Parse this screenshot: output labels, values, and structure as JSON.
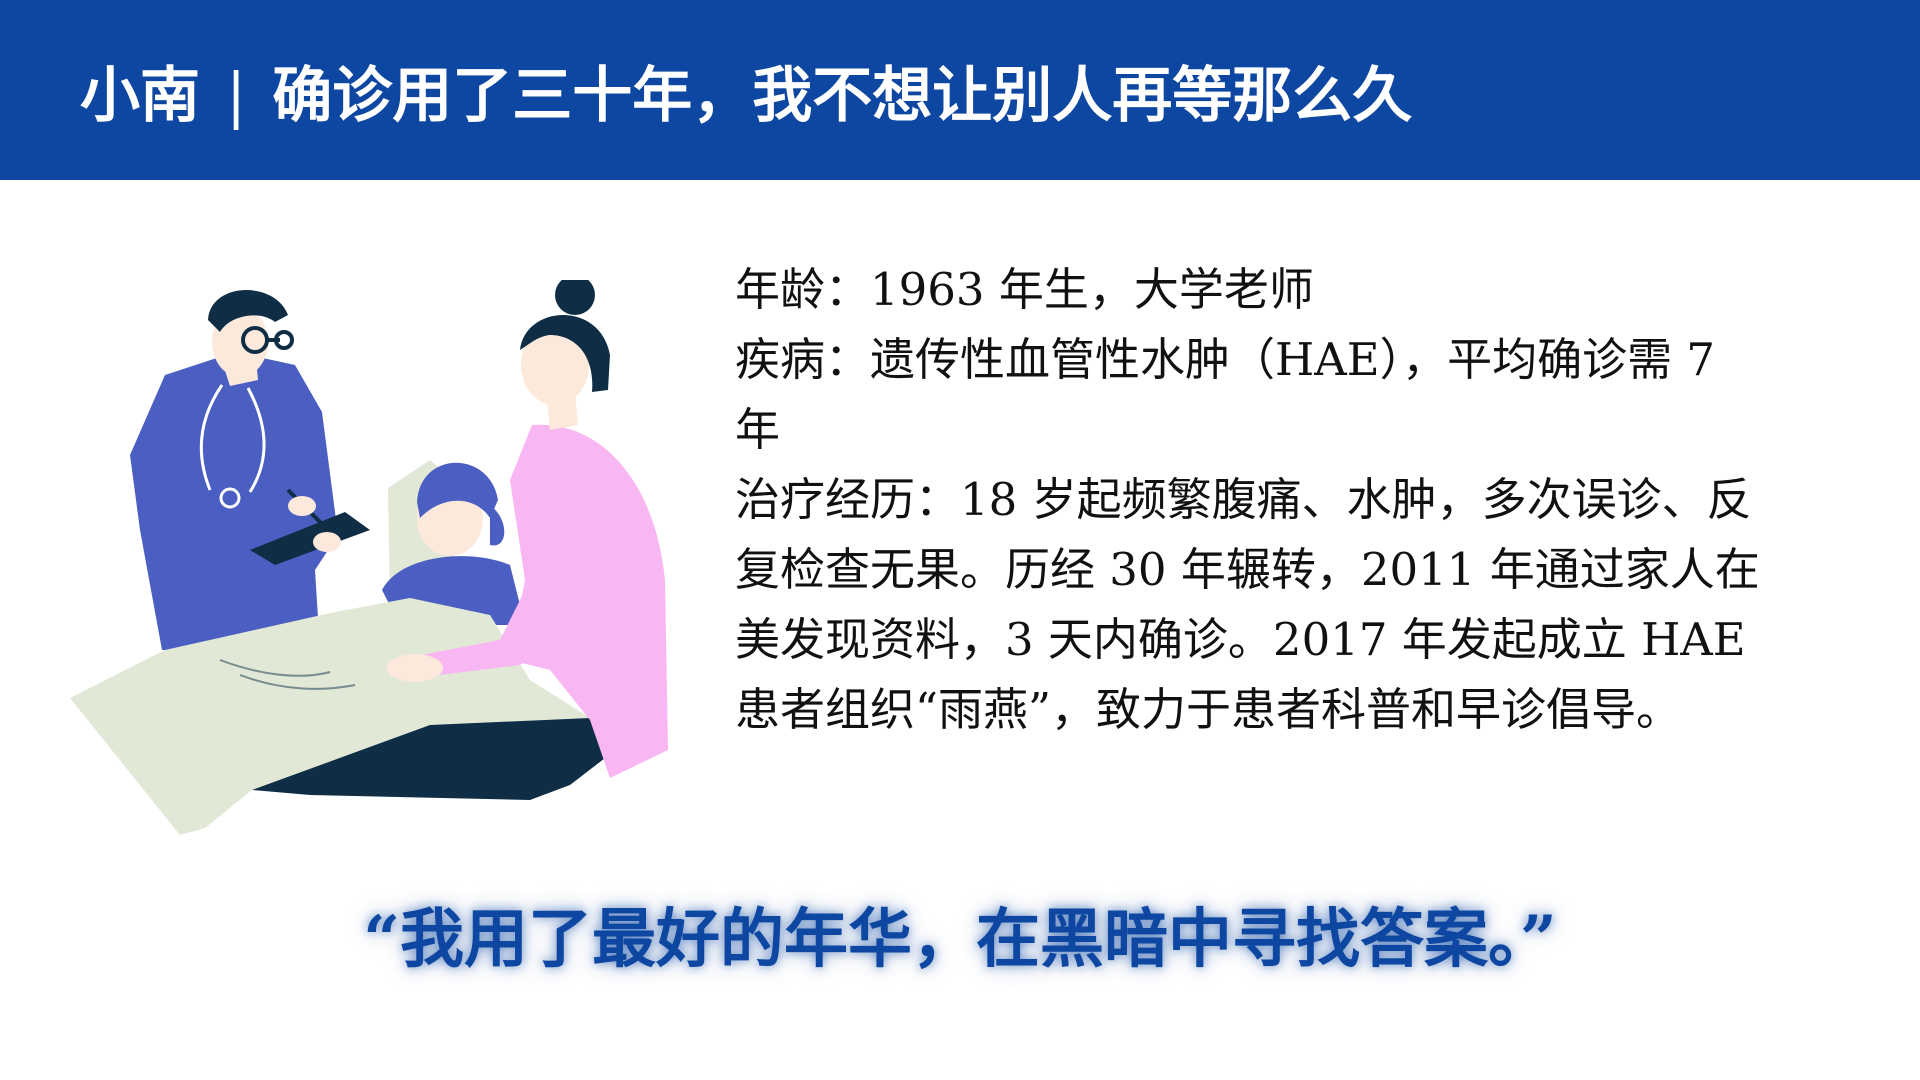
{
  "header": {
    "name": "小南",
    "separator": "|",
    "title": "确诊用了三十年，我不想让别人再等那么久"
  },
  "info": {
    "age": "年龄：1963 年生，大学老师",
    "disease": "疾病：遗传性血管性水肿（HAE），平均确诊需 7 年",
    "treatment": "治疗经历：18 岁起频繁腹痛、水肿，多次误诊、反复检查无果。历经 30 年辗转，2011 年通过家人在美发现资料，3 天内确诊。2017 年发起成立 HAE 患者组织“雨燕”，致力于患者科普和早诊倡导。"
  },
  "quote": "“我用了最好的年华，在黑暗中寻找答案。”",
  "colors": {
    "header_bg": "#0D47A1",
    "quote": "#0D47A1",
    "doctor_coat": "#4A5FC1",
    "navy": "#0F2E45",
    "blanket": "#E1E8D6",
    "pink_sweater": "#F8B6F3",
    "skin": "#FCE9DC"
  },
  "illustration": {
    "subject": "doctor-patient-caregiver-illustration"
  }
}
